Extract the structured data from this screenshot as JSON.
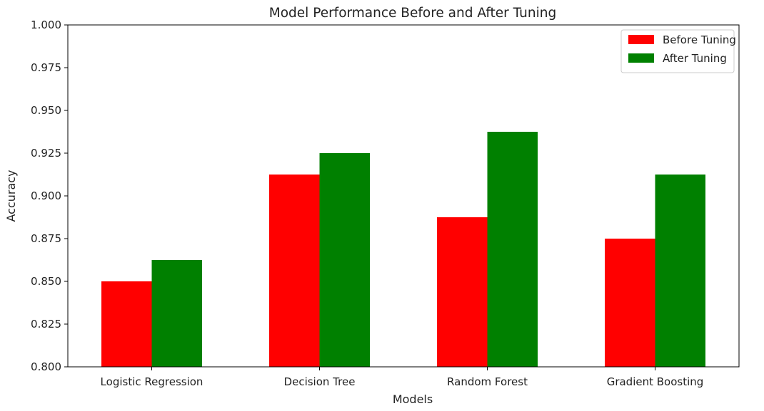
{
  "chart_data": {
    "type": "bar",
    "title": "Model Performance Before and After Tuning",
    "xlabel": "Models",
    "ylabel": "Accuracy",
    "categories": [
      "Logistic Regression",
      "Decision Tree",
      "Random Forest",
      "Gradient Boosting"
    ],
    "series": [
      {
        "name": "Before Tuning",
        "color": "#ff0000",
        "values": [
          0.85,
          0.9125,
          0.8875,
          0.875
        ]
      },
      {
        "name": "After Tuning",
        "color": "#008000",
        "values": [
          0.8625,
          0.925,
          0.9375,
          0.9125
        ]
      }
    ],
    "ylim": [
      0.8,
      1.0
    ],
    "yticks": [
      "0.800",
      "0.825",
      "0.850",
      "0.875",
      "0.900",
      "0.925",
      "0.950",
      "0.975",
      "1.000"
    ],
    "grid": false,
    "legend_position": "top-right"
  }
}
